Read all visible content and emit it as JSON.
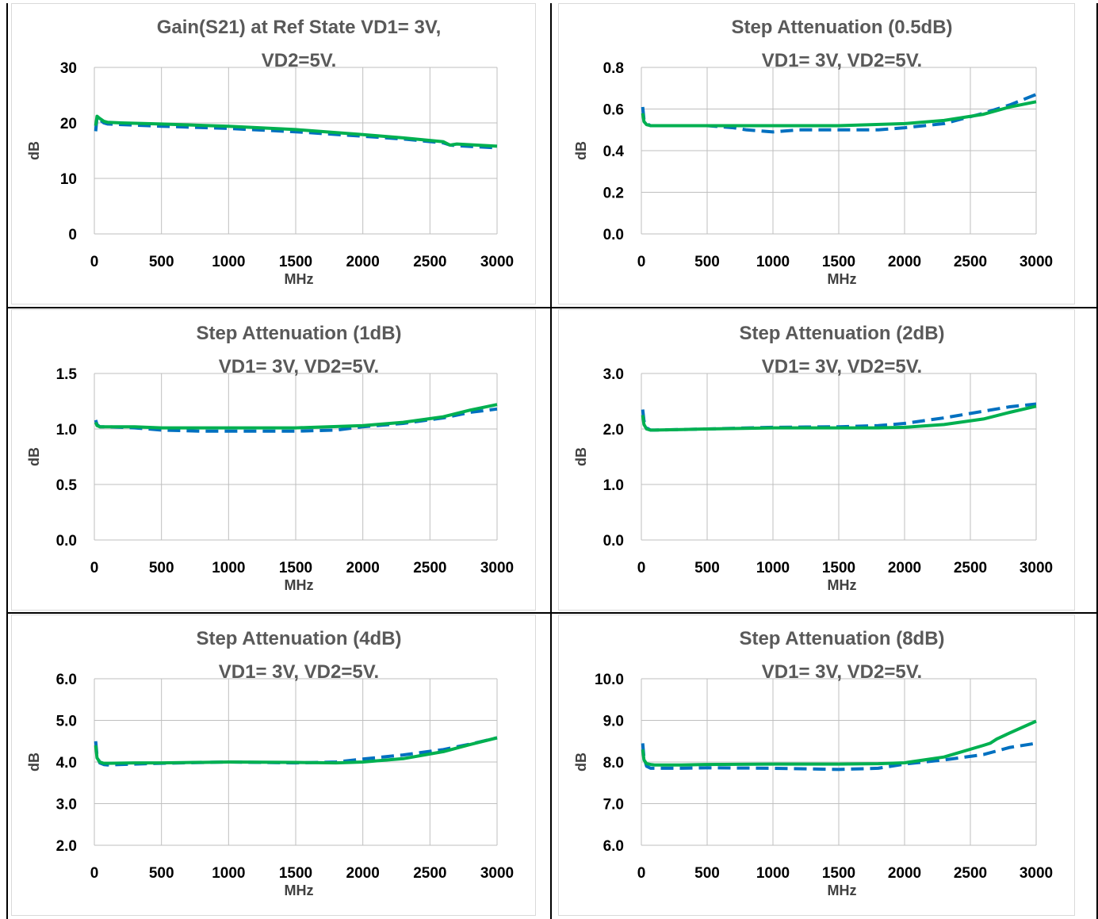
{
  "colors": {
    "series_a": "#0070c0",
    "series_b": "#00b050",
    "grid": "#bfbfbf"
  },
  "chart_data": [
    {
      "type": "line",
      "title": "Gain(S21) at Ref State VD1= 3V,",
      "subtitle": "VD2=5V.",
      "xlabel": "MHz",
      "ylabel": "dB",
      "xlim": [
        0,
        3000
      ],
      "ylim": [
        0,
        30
      ],
      "xticks": [
        "0",
        "500",
        "1000",
        "1500",
        "2000",
        "2500",
        "3000"
      ],
      "yticks": [
        "0",
        "10",
        "20",
        "30"
      ],
      "grid": true,
      "series": [
        {
          "style": "dashed",
          "color": "#0070c0",
          "x": [
            10,
            20,
            40,
            70,
            100,
            200,
            500,
            1000,
            1500,
            2000,
            2300,
            2600,
            2650,
            2700,
            3000
          ],
          "y": [
            18.5,
            21.0,
            20.6,
            20.0,
            19.8,
            19.7,
            19.4,
            19.0,
            18.4,
            17.6,
            17.1,
            16.4,
            16.0,
            15.9,
            15.5
          ]
        },
        {
          "style": "solid",
          "color": "#00b050",
          "x": [
            10,
            20,
            40,
            70,
            100,
            200,
            500,
            1000,
            1500,
            2000,
            2300,
            2600,
            2650,
            2700,
            3000
          ],
          "y": [
            19.5,
            21.2,
            20.8,
            20.3,
            20.1,
            20.0,
            19.8,
            19.4,
            18.8,
            17.9,
            17.3,
            16.6,
            16.0,
            16.2,
            15.8
          ]
        }
      ]
    },
    {
      "type": "line",
      "title": "Step Attenuation (0.5dB)",
      "subtitle": "VD1= 3V, VD2=5V.",
      "xlabel": "MHz",
      "ylabel": "dB",
      "xlim": [
        0,
        3000
      ],
      "ylim": [
        0,
        0.8
      ],
      "xticks": [
        "0",
        "500",
        "1000",
        "1500",
        "2000",
        "2500",
        "3000"
      ],
      "yticks": [
        "0.0",
        "0.2",
        "0.4",
        "0.6",
        "0.8"
      ],
      "grid": true,
      "series": [
        {
          "style": "dashed",
          "color": "#0070c0",
          "x": [
            10,
            20,
            40,
            70,
            100,
            300,
            500,
            700,
            800,
            1000,
            1200,
            1500,
            1800,
            2000,
            2300,
            2600,
            2800,
            3000
          ],
          "y": [
            0.61,
            0.55,
            0.53,
            0.52,
            0.52,
            0.52,
            0.52,
            0.51,
            0.5,
            0.49,
            0.5,
            0.5,
            0.5,
            0.51,
            0.53,
            0.58,
            0.62,
            0.67
          ]
        },
        {
          "style": "solid",
          "color": "#00b050",
          "x": [
            10,
            20,
            40,
            70,
            100,
            300,
            500,
            1000,
            1500,
            2000,
            2300,
            2600,
            2800,
            3000
          ],
          "y": [
            0.58,
            0.54,
            0.525,
            0.52,
            0.52,
            0.52,
            0.52,
            0.52,
            0.52,
            0.53,
            0.545,
            0.575,
            0.61,
            0.635
          ]
        }
      ]
    },
    {
      "type": "line",
      "title": "Step Attenuation (1dB)",
      "subtitle": "VD1= 3V, VD2=5V.",
      "xlabel": "MHz",
      "ylabel": "dB",
      "xlim": [
        0,
        3000
      ],
      "ylim": [
        0,
        1.5
      ],
      "xticks": [
        "0",
        "500",
        "1000",
        "1500",
        "2000",
        "2500",
        "3000"
      ],
      "yticks": [
        "0.0",
        "0.5",
        "1.0",
        "1.5"
      ],
      "grid": true,
      "series": [
        {
          "style": "dashed",
          "color": "#0070c0",
          "x": [
            10,
            20,
            40,
            70,
            100,
            300,
            500,
            800,
            1000,
            1500,
            1800,
            2000,
            2300,
            2600,
            2800,
            3000
          ],
          "y": [
            1.08,
            1.04,
            1.02,
            1.02,
            1.02,
            1.01,
            0.99,
            0.98,
            0.98,
            0.98,
            0.99,
            1.02,
            1.05,
            1.1,
            1.15,
            1.18
          ]
        },
        {
          "style": "solid",
          "color": "#00b050",
          "x": [
            10,
            20,
            40,
            70,
            100,
            300,
            500,
            1000,
            1500,
            2000,
            2300,
            2600,
            2800,
            3000
          ],
          "y": [
            1.06,
            1.03,
            1.02,
            1.02,
            1.02,
            1.02,
            1.01,
            1.01,
            1.01,
            1.03,
            1.06,
            1.11,
            1.17,
            1.22
          ]
        }
      ]
    },
    {
      "type": "line",
      "title": "Step Attenuation (2dB)",
      "subtitle": "VD1= 3V, VD2=5V.",
      "xlabel": "MHz",
      "ylabel": "dB",
      "xlim": [
        0,
        3000
      ],
      "ylim": [
        0,
        3.0
      ],
      "xticks": [
        "0",
        "500",
        "1000",
        "1500",
        "2000",
        "2500",
        "3000"
      ],
      "yticks": [
        "0.0",
        "1.0",
        "2.0",
        "3.0"
      ],
      "grid": true,
      "series": [
        {
          "style": "dashed",
          "color": "#0070c0",
          "x": [
            10,
            20,
            40,
            70,
            100,
            300,
            500,
            1000,
            1500,
            1800,
            2000,
            2300,
            2600,
            2800,
            3000
          ],
          "y": [
            2.35,
            2.15,
            2.02,
            1.98,
            1.98,
            1.99,
            2.0,
            2.03,
            2.04,
            2.06,
            2.1,
            2.2,
            2.32,
            2.4,
            2.45
          ]
        },
        {
          "style": "solid",
          "color": "#00b050",
          "x": [
            10,
            20,
            40,
            70,
            100,
            300,
            500,
            1000,
            1500,
            1800,
            2000,
            2300,
            2600,
            2800,
            3000
          ],
          "y": [
            2.25,
            2.08,
            2.0,
            1.98,
            1.98,
            1.99,
            2.0,
            2.02,
            2.02,
            2.02,
            2.03,
            2.08,
            2.18,
            2.3,
            2.41
          ]
        }
      ]
    },
    {
      "type": "line",
      "title": "Step Attenuation (4dB)",
      "subtitle": "VD1= 3V, VD2=5V.",
      "xlabel": "MHz",
      "ylabel": "dB",
      "xlim": [
        0,
        3000
      ],
      "ylim": [
        2.0,
        6.0
      ],
      "xticks": [
        "0",
        "500",
        "1000",
        "1500",
        "2000",
        "2500",
        "3000"
      ],
      "yticks": [
        "2.0",
        "3.0",
        "4.0",
        "5.0",
        "6.0"
      ],
      "grid": true,
      "series": [
        {
          "style": "dashed",
          "color": "#0070c0",
          "x": [
            10,
            20,
            40,
            70,
            100,
            300,
            500,
            1000,
            1500,
            1800,
            2000,
            2300,
            2600,
            2800,
            3000
          ],
          "y": [
            4.5,
            4.15,
            3.98,
            3.94,
            3.93,
            3.95,
            3.97,
            4.0,
            3.98,
            4.0,
            4.07,
            4.17,
            4.3,
            4.43,
            4.58
          ]
        },
        {
          "style": "solid",
          "color": "#00b050",
          "x": [
            10,
            20,
            40,
            70,
            100,
            300,
            500,
            1000,
            1500,
            1800,
            2000,
            2300,
            2600,
            2800,
            3000
          ],
          "y": [
            4.4,
            4.1,
            4.0,
            3.97,
            3.97,
            3.98,
            3.98,
            4.0,
            3.99,
            3.98,
            4.0,
            4.08,
            4.25,
            4.42,
            4.58
          ]
        }
      ]
    },
    {
      "type": "line",
      "title": "Step Attenuation (8dB)",
      "subtitle": "VD1= 3V, VD2=5V.",
      "xlabel": "MHz",
      "ylabel": "dB",
      "xlim": [
        0,
        3000
      ],
      "ylim": [
        6.0,
        10.0
      ],
      "xticks": [
        "0",
        "500",
        "1000",
        "1500",
        "2000",
        "2500",
        "3000"
      ],
      "yticks": [
        "6.0",
        "7.0",
        "8.0",
        "9.0",
        "10.0"
      ],
      "grid": true,
      "series": [
        {
          "style": "dashed",
          "color": "#0070c0",
          "x": [
            10,
            20,
            40,
            70,
            100,
            300,
            500,
            1000,
            1500,
            1800,
            2000,
            2300,
            2600,
            2800,
            3000
          ],
          "y": [
            8.45,
            8.1,
            7.9,
            7.85,
            7.85,
            7.85,
            7.86,
            7.85,
            7.82,
            7.85,
            7.95,
            8.05,
            8.18,
            8.35,
            8.45
          ]
        },
        {
          "style": "solid",
          "color": "#00b050",
          "x": [
            10,
            20,
            40,
            70,
            100,
            300,
            500,
            1000,
            1500,
            1800,
            2000,
            2300,
            2600,
            2650,
            2700,
            2800,
            3000
          ],
          "y": [
            8.3,
            8.05,
            7.96,
            7.94,
            7.93,
            7.93,
            7.94,
            7.95,
            7.95,
            7.96,
            7.98,
            8.12,
            8.4,
            8.45,
            8.55,
            8.7,
            8.98
          ]
        }
      ]
    }
  ]
}
